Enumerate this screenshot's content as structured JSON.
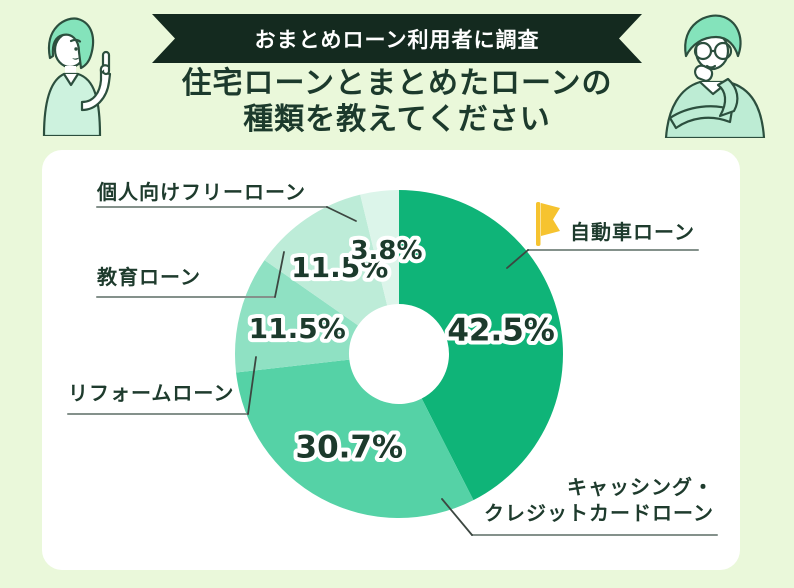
{
  "banner": {
    "label": "おまとめローン利用者に調査"
  },
  "title": {
    "line1": "住宅ローンとまとめたローンの",
    "line2": "種類を教えてください"
  },
  "chart_data": {
    "type": "pie",
    "donut": true,
    "title": "住宅ローンとまとめたローンの種類",
    "start_angle_deg": 0,
    "direction": "clockwise",
    "categories": [
      "自動車ローン",
      "キャッシング・クレジットカードローン",
      "リフォームローン",
      "教育ローン",
      "個人向けフリーローン"
    ],
    "values": [
      42.5,
      30.7,
      11.5,
      11.5,
      3.8
    ],
    "value_labels": [
      "42.5%",
      "30.7%",
      "11.5%",
      "11.5%",
      "3.8%"
    ],
    "colors": [
      "#0fb478",
      "#55d2a6",
      "#8fe1c3",
      "#bdecd8",
      "#dcf5ea"
    ],
    "legend_position": "callouts"
  },
  "callouts": {
    "car": {
      "label": "自動車ローン"
    },
    "cashing": {
      "line1": "キャッシング・",
      "line2": "クレジットカードローン"
    },
    "reform": {
      "label": "リフォームローン"
    },
    "education": {
      "label": "教育ローン"
    },
    "personal": {
      "label": "個人向けフリーローン"
    }
  },
  "icons": {
    "flag": "flag-icon"
  },
  "colors": {
    "background": "#eaf8da",
    "banner": "#142a1f",
    "title_text": "#1c3a2c",
    "flag": "#f6c32f",
    "underline": "#84918b",
    "leader_line": "#3c4741",
    "card": "#ffffff"
  }
}
